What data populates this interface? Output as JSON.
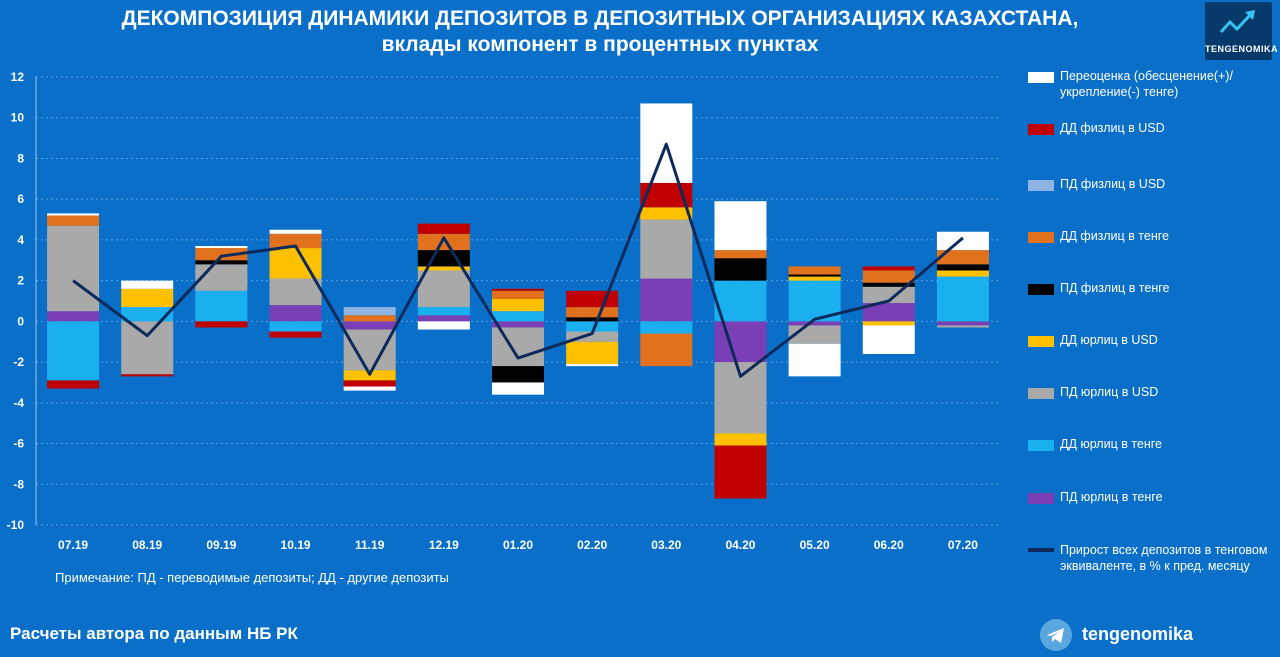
{
  "header": {
    "title_line1": "ДЕКОМПОЗИЦИЯ ДИНАМИКИ ДЕПОЗИТОВ В ДЕПОЗИТНЫХ ОРГАНИЗАЦИЯХ КАЗАХСТАНА,",
    "title_line2": "вклады компонент в процентных пунктах",
    "logo_text": "TENGENOMIKA"
  },
  "footer": {
    "note": "Примечание: ПД - переводимые депозиты; ДД - другие депозиты",
    "source": "Расчеты автора по данным НБ РК",
    "telegram": "tengenomika"
  },
  "colors": {
    "background": "#0a6fc8",
    "line": "#0d2a5a"
  },
  "chart_data": {
    "type": "bar",
    "stacked": true,
    "categories": [
      "07.19",
      "08.19",
      "09.19",
      "10.19",
      "11.19",
      "12.19",
      "01.20",
      "02.20",
      "03.20",
      "04.20",
      "05.20",
      "06.20",
      "07.20"
    ],
    "ylim": [
      -10,
      12
    ],
    "yticks": [
      -10,
      -8,
      -6,
      -4,
      -2,
      0,
      2,
      4,
      6,
      8,
      10,
      12
    ],
    "grid": true,
    "legend_position": "right",
    "series": [
      {
        "name": "ПД юрлиц в тенге",
        "color": "#7b3fb5",
        "values": [
          0.5,
          0.0,
          0.0,
          0.8,
          -0.4,
          0.3,
          -0.3,
          0.0,
          2.1,
          -2.0,
          -0.2,
          0.9,
          -0.2
        ]
      },
      {
        "name": "ДД юрлиц в тенге",
        "color": "#1ab0f0",
        "values": [
          -2.9,
          0.7,
          1.5,
          -0.5,
          0.0,
          0.4,
          0.5,
          -0.5,
          -0.6,
          2.0,
          2.0,
          0.0,
          2.2
        ]
      },
      {
        "name": "ПД юрлиц в USD",
        "color": "#a9a9a9",
        "values": [
          4.2,
          -2.6,
          1.3,
          1.3,
          -2.0,
          1.8,
          -1.9,
          -0.5,
          2.9,
          -3.5,
          -0.9,
          0.8,
          -0.1
        ]
      },
      {
        "name": "ДД юрлиц в USD",
        "color": "#ffc000",
        "values": [
          0.0,
          0.9,
          0.0,
          1.5,
          -0.5,
          0.2,
          0.6,
          -1.1,
          0.6,
          -0.6,
          0.2,
          -0.2,
          0.3
        ]
      },
      {
        "name": "ПД физлиц в тенге",
        "color": "#000000",
        "values": [
          0.0,
          0.0,
          0.2,
          0.0,
          0.0,
          0.8,
          -0.8,
          0.2,
          0.0,
          1.1,
          0.1,
          0.2,
          0.3
        ]
      },
      {
        "name": "ДД физлиц в тенге",
        "color": "#e2711d",
        "values": [
          0.5,
          0.0,
          0.6,
          0.7,
          0.3,
          0.8,
          0.4,
          0.5,
          -1.6,
          0.4,
          0.4,
          0.6,
          0.7
        ]
      },
      {
        "name": "ПД физлиц в USD",
        "color": "#8db4e2",
        "values": [
          0.0,
          0.0,
          0.0,
          0.0,
          0.4,
          0.0,
          0.0,
          0.0,
          0.0,
          0.0,
          0.0,
          0.0,
          0.0
        ]
      },
      {
        "name": "ДД физлиц в USD",
        "color": "#c00000",
        "values": [
          -0.4,
          -0.1,
          -0.3,
          -0.3,
          -0.3,
          0.5,
          0.1,
          0.8,
          1.2,
          -2.6,
          0.0,
          0.2,
          0.0
        ]
      },
      {
        "name": "Переоценка (обесценение(+)/укрепление(-) тенге)",
        "color": "#ffffff",
        "values": [
          0.1,
          0.4,
          0.1,
          0.2,
          -0.2,
          -0.4,
          -0.6,
          -0.1,
          3.9,
          2.4,
          -1.6,
          -1.4,
          0.9
        ]
      }
    ],
    "line_series": {
      "name": "Прирост всех депозитов в тенговом эквиваленте, в % к пред. месяцу",
      "color": "#0d2a5a",
      "values": [
        2.0,
        -0.7,
        3.2,
        3.7,
        -2.6,
        4.1,
        -1.8,
        -0.6,
        8.7,
        -2.7,
        0.1,
        1.0,
        4.1
      ]
    },
    "legend_order": [
      "Переоценка (обесценение(+)/укрепление(-) тенге)",
      "ДД физлиц в USD",
      "ПД физлиц в USD",
      "ДД физлиц в тенге",
      "ПД физлиц в тенге",
      "ДД юрлиц в USD",
      "ПД юрлиц в USD",
      "ДД юрлиц в тенге",
      "ПД юрлиц в тенге",
      "Прирост всех депозитов в тенговом эквиваленте, в % к пред. месяцу"
    ],
    "legend_labels": [
      "Переоценка (обесценение(+)/укрепление(-) тенге)",
      "ДД физлиц в USD",
      "ПД физлиц в USD",
      "ДД физлиц в тенге",
      "ПД физлиц в тенге",
      "ДД юрлиц в USD",
      "ПД юрлиц в USD",
      "ДД юрлиц в тенге",
      "ПД юрлиц в тенге",
      "Прирост всех депозитов в тенговом эквиваленте, в % к пред. месяцу"
    ]
  }
}
